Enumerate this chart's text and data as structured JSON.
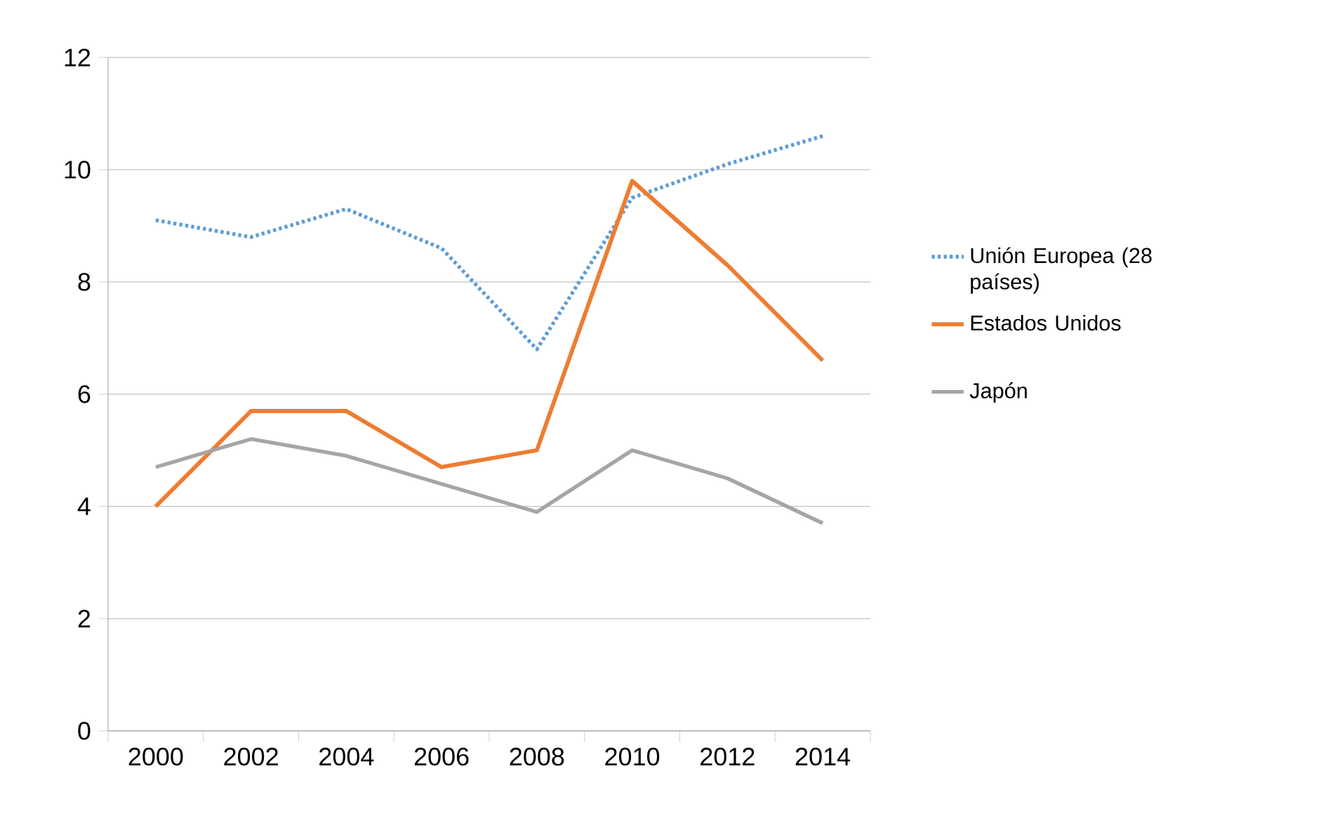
{
  "chart_data": {
    "type": "line",
    "categories": [
      "2000",
      "2002",
      "2004",
      "2006",
      "2008",
      "2010",
      "2012",
      "2014"
    ],
    "series": [
      {
        "name": "Unión Europea (28 países)",
        "color": "#5b9bd5",
        "line_style": "dotted",
        "values": [
          9.1,
          8.8,
          9.3,
          8.6,
          6.8,
          9.5,
          10.1,
          10.6
        ]
      },
      {
        "name": "Estados Unidos",
        "color": "#ed7d31",
        "line_style": "solid",
        "values": [
          4.0,
          5.7,
          5.7,
          4.7,
          5.0,
          9.8,
          8.3,
          6.6
        ]
      },
      {
        "name": "Japón",
        "color": "#a5a5a5",
        "line_style": "solid",
        "values": [
          4.7,
          5.2,
          4.9,
          4.4,
          3.9,
          5.0,
          4.5,
          3.7
        ]
      }
    ],
    "ylim": [
      0,
      12
    ],
    "yticks": [
      0,
      2,
      4,
      6,
      8,
      10,
      12
    ],
    "grid": "y",
    "legend": "right",
    "marker": "none"
  }
}
